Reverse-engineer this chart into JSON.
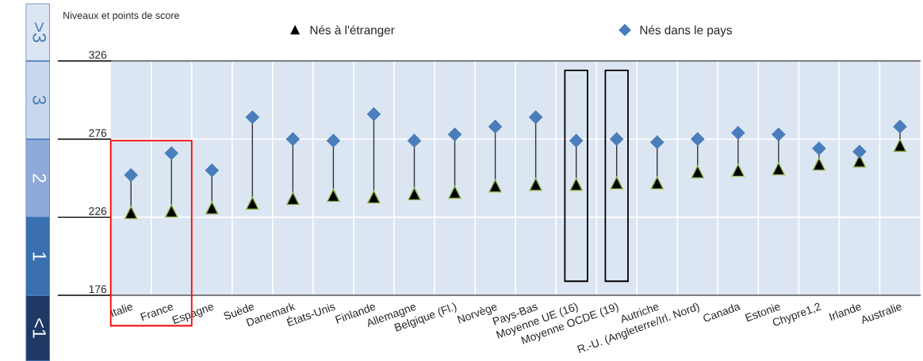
{
  "chart_data": {
    "type": "scatter",
    "ylabel": "Niveaux et points de score",
    "categories": [
      "Italie",
      "France",
      "Espagne",
      "Suède",
      "Danemark",
      "États-Unis",
      "Finlande",
      "Allemagne",
      "Belgique (Fl.)",
      "Norvège",
      "Pays-Bas",
      "Moyenne UE (16)",
      "Moyenne OCDE (19)",
      "Autriche",
      "R.-U. (Angleterre/Irl. Nord)",
      "Canada",
      "Estonie",
      "Chypre1,2",
      "Irlande",
      "Australie"
    ],
    "series": [
      {
        "name": "Nés à l'étranger",
        "color": "#000000",
        "marker": "triangle",
        "values": [
          229,
          230,
          232,
          235,
          238,
          240,
          239,
          241,
          242,
          246,
          247,
          247,
          248,
          248,
          255,
          256,
          257,
          260,
          262,
          272
        ]
      },
      {
        "name": "Nés dans le pays",
        "color": "#4a7ebb",
        "marker": "diamond",
        "values": [
          253,
          267,
          256,
          290,
          276,
          275,
          292,
          275,
          279,
          284,
          290,
          275,
          276,
          274,
          276,
          280,
          279,
          270,
          268,
          284
        ]
      }
    ],
    "ylim": [
      176,
      326
    ],
    "yticks": [
      176,
      226,
      276,
      326
    ],
    "grid": true,
    "legend": "top",
    "annotations": [
      "<1",
      "1",
      "2",
      "3",
      ">3"
    ]
  }
}
